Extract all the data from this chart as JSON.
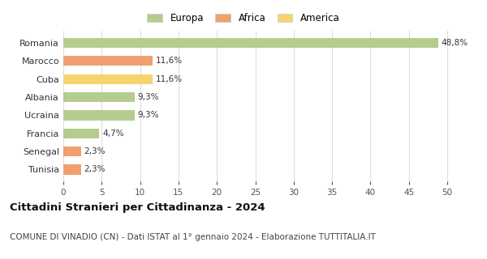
{
  "categories": [
    "Tunisia",
    "Senegal",
    "Francia",
    "Ucraina",
    "Albania",
    "Cuba",
    "Marocco",
    "Romania"
  ],
  "values": [
    2.3,
    2.3,
    4.7,
    9.3,
    9.3,
    11.6,
    11.6,
    48.8
  ],
  "bar_colors": [
    "#f0a070",
    "#f0a070",
    "#b5cc8e",
    "#b5cc8e",
    "#b5cc8e",
    "#f5d470",
    "#f0a070",
    "#b5cc8e"
  ],
  "labels": [
    "2,3%",
    "2,3%",
    "4,7%",
    "9,3%",
    "9,3%",
    "11,6%",
    "11,6%",
    "48,8%"
  ],
  "xlim": [
    0,
    52
  ],
  "xticks": [
    0,
    5,
    10,
    15,
    20,
    25,
    30,
    35,
    40,
    45,
    50
  ],
  "legend": [
    {
      "label": "Europa",
      "color": "#b5cc8e"
    },
    {
      "label": "Africa",
      "color": "#f0a070"
    },
    {
      "label": "America",
      "color": "#f5d470"
    }
  ],
  "title": "Cittadini Stranieri per Cittadinanza - 2024",
  "subtitle": "COMUNE DI VINADIO (CN) - Dati ISTAT al 1° gennaio 2024 - Elaborazione TUTTITALIA.IT",
  "title_fontsize": 9.5,
  "subtitle_fontsize": 7.5,
  "background_color": "#ffffff",
  "grid_color": "#dddddd"
}
